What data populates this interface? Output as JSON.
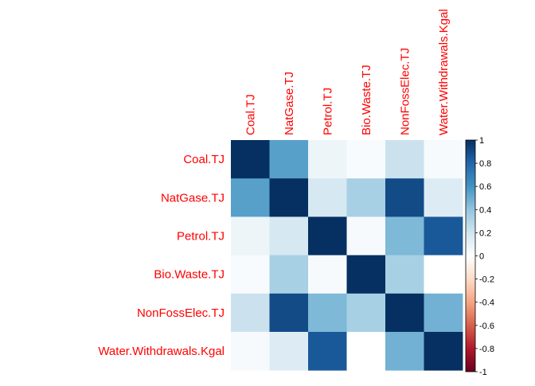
{
  "chart_data": {
    "type": "heatmap",
    "title": "",
    "variables": [
      "Coal.TJ",
      "NatGase.TJ",
      "Petrol.TJ",
      "Bio.Waste.TJ",
      "NonFossElec.TJ",
      "Water.Withdrawals.Kgal"
    ],
    "matrix": [
      [
        1.0,
        0.55,
        0.08,
        0.03,
        0.22,
        0.04
      ],
      [
        0.55,
        1.0,
        0.18,
        0.33,
        0.9,
        0.15
      ],
      [
        0.08,
        0.18,
        1.0,
        0.04,
        0.45,
        0.85
      ],
      [
        0.03,
        0.33,
        0.04,
        1.0,
        0.33,
        0.0
      ],
      [
        0.22,
        0.9,
        0.45,
        0.33,
        1.0,
        0.48
      ],
      [
        0.04,
        0.15,
        0.85,
        0.0,
        0.48,
        1.0
      ]
    ],
    "color_scale": {
      "min": -1,
      "max": 1,
      "ticks": [
        "1",
        "0.8",
        "0.6",
        "0.4",
        "0.2",
        "0",
        "-0.2",
        "-0.4",
        "-0.6",
        "-0.8",
        "-1"
      ],
      "colors": [
        "#67001F",
        "#B2182B",
        "#D6604D",
        "#F4A582",
        "#FDDBC7",
        "#FFFFFF",
        "#D1E5F0",
        "#92C5DE",
        "#4393C3",
        "#2166AC",
        "#053061"
      ]
    },
    "label_color": "#FF0000"
  }
}
